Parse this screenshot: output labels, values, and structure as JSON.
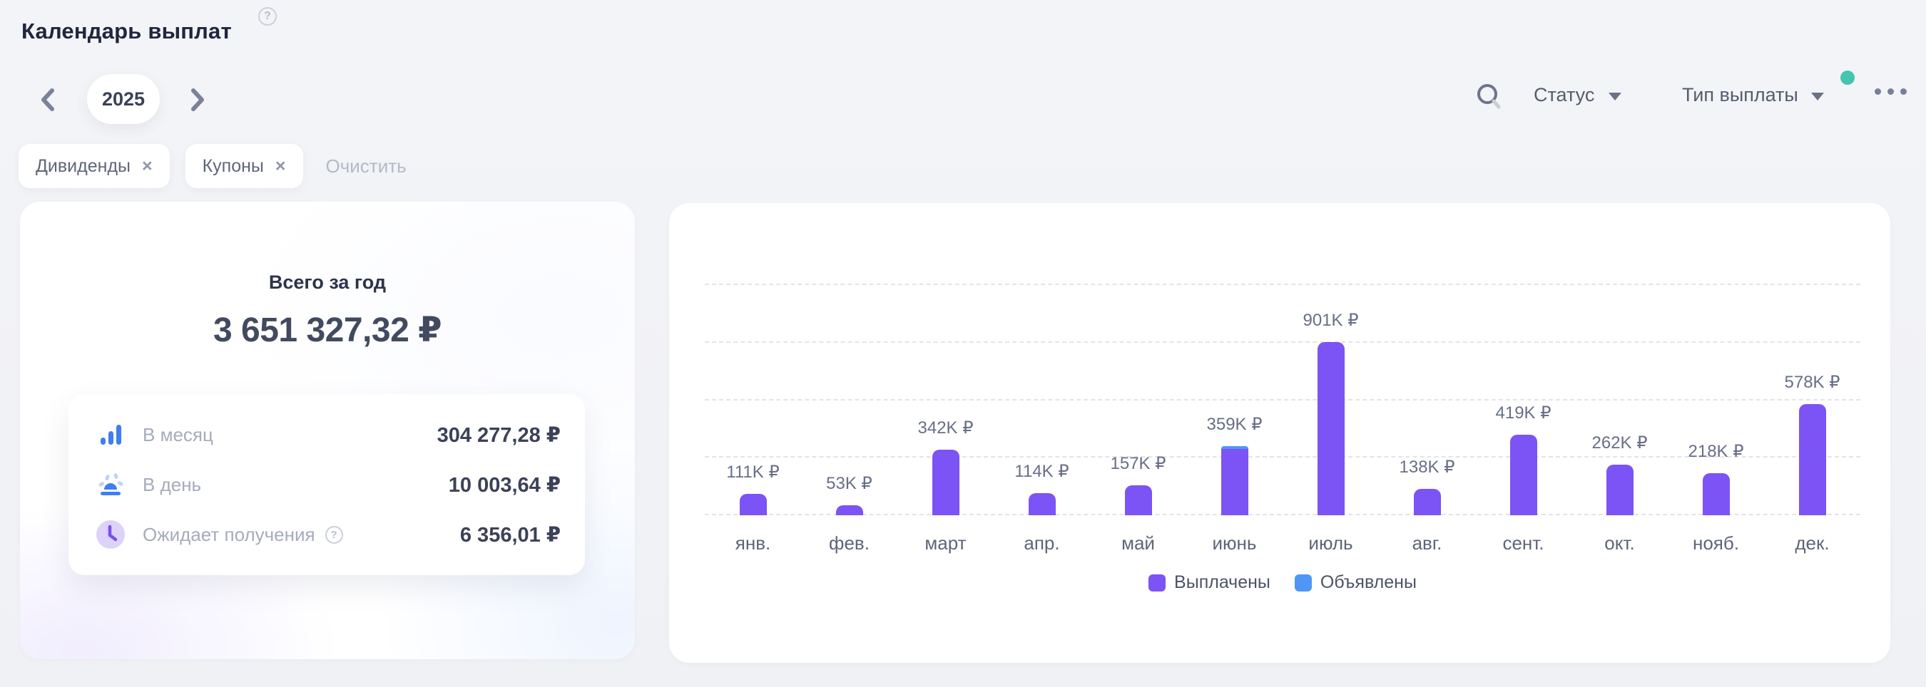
{
  "page": {
    "title": "Календарь выплат",
    "help_icon": "?"
  },
  "year_nav": {
    "year": "2025"
  },
  "filters": {
    "chips": [
      {
        "label": "Дивиденды",
        "remove_icon": "×"
      },
      {
        "label": "Купоны",
        "remove_icon": "×"
      }
    ],
    "clear_label": "Очистить"
  },
  "toolbar": {
    "status_label": "Статус",
    "payout_type_label": "Тип выплаты",
    "notification_dot_color": "#45c4b0"
  },
  "summary": {
    "total_label": "Всего за год",
    "total_value": "3 651 327,32 ₽",
    "rows": [
      {
        "icon": "bar-chart-icon",
        "label": "В месяц",
        "value": "304 277,28 ₽"
      },
      {
        "icon": "sunrise-icon",
        "label": "В день",
        "value": "10 003,64 ₽"
      },
      {
        "icon": "clock-icon",
        "label": "Ожидает получения",
        "value": "6 356,01 ₽",
        "help_icon": "?"
      }
    ]
  },
  "chart_data": {
    "type": "bar",
    "stacked": true,
    "title": "",
    "xlabel": "",
    "ylabel": "",
    "unit": "тыс. ₽",
    "categories": [
      "янв.",
      "фев.",
      "март",
      "апр.",
      "май",
      "июнь",
      "июль",
      "авг.",
      "сент.",
      "окт.",
      "нояб.",
      "дек."
    ],
    "series": [
      {
        "name": "Выплачены",
        "color": "#7c53f5",
        "values": [
          111,
          53,
          342,
          114,
          157,
          344,
          901,
          138,
          419,
          262,
          218,
          578
        ]
      },
      {
        "name": "Объявлены",
        "color": "#4f96f5",
        "values": [
          0,
          0,
          0,
          0,
          0,
          15,
          0,
          0,
          0,
          0,
          0,
          0
        ]
      }
    ],
    "bar_labels": [
      "111K ₽",
      "53K ₽",
      "342K ₽",
      "114K ₽",
      "157K ₽",
      "359K ₽",
      "901K ₽",
      "138K ₽",
      "419K ₽",
      "262K ₽",
      "218K ₽",
      "578K ₽"
    ],
    "ylim": [
      0,
      1200
    ],
    "gridlines": [
      0,
      300,
      600,
      900,
      1200
    ],
    "grid_style": "dashed",
    "legend_position": "bottom"
  }
}
